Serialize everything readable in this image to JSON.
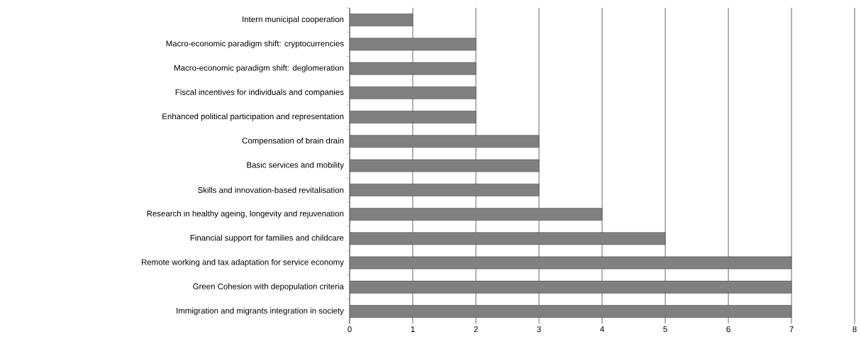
{
  "chart_data": {
    "type": "bar",
    "orientation": "horizontal",
    "categories": [
      "Intern municipal cooperation",
      "Macro-economic paradigm shift: cryptocurrencies",
      "Macro-economic paradigm shift: deglomeration",
      "Fiscal incentives for individuals and companies",
      "Enhanced political participation and representation",
      "Compensation of brain drain",
      "Basic services and mobility",
      "Skills and innovation-based revitalisation",
      "Research in healthy ageing, longevity and rejuvenation",
      "Financial support for families and childcare",
      "Remote working and tax adaptation for service economy",
      "Green Cohesion with depopulation criteria",
      "Immigration and migrants integration in society"
    ],
    "values": [
      1,
      2,
      2,
      2,
      2,
      3,
      3,
      3,
      4,
      5,
      7,
      7,
      7
    ],
    "color": "#808080",
    "xlim": [
      0,
      8
    ],
    "xticks": [
      0,
      1,
      2,
      3,
      4,
      5,
      6,
      7,
      8
    ],
    "grid": "x"
  }
}
